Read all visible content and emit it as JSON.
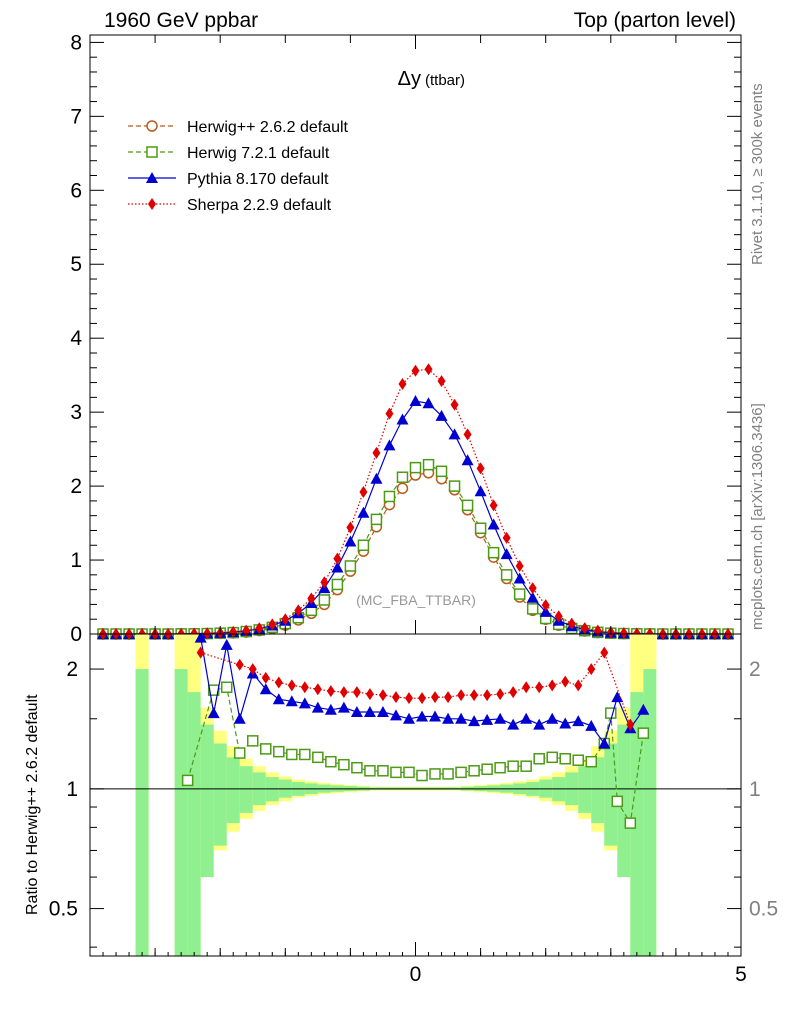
{
  "header": {
    "left": "1960 GeV ppbar",
    "right": "Top (parton level)"
  },
  "side_labels": {
    "rivet": "Rivet 3.1.10, ≥ 300k events",
    "mcplots": "mcplots.cern.ch [arXiv:1306.3436]"
  },
  "chart_data": [
    {
      "type": "line",
      "panel": "main",
      "title_main": "Δy",
      "title_sub": "(ttbar)",
      "watermark": "(MC_FBA_TTBAR)",
      "xlabel": "",
      "ylabel": "",
      "xlim": [
        -5,
        5
      ],
      "ylim": [
        0,
        8.1
      ],
      "yticks": [
        0,
        1,
        2,
        3,
        4,
        5,
        6,
        7,
        8
      ],
      "xticks": [
        0,
        5
      ],
      "legend_position": "top-left",
      "x": [
        -4.8,
        -4.6,
        -4.4,
        -4.2,
        -4.0,
        -3.8,
        -3.6,
        -3.4,
        -3.2,
        -3.0,
        -2.8,
        -2.6,
        -2.4,
        -2.2,
        -2.0,
        -1.8,
        -1.6,
        -1.4,
        -1.2,
        -1.0,
        -0.8,
        -0.6,
        -0.4,
        -0.2,
        0.0,
        0.2,
        0.4,
        0.6,
        0.8,
        1.0,
        1.2,
        1.4,
        1.6,
        1.8,
        2.0,
        2.2,
        2.4,
        2.6,
        2.8,
        3.0,
        3.2,
        3.4,
        3.6,
        3.8,
        4.0,
        4.2,
        4.4,
        4.6,
        4.8
      ],
      "series": [
        {
          "name": "Herwig++ 2.6.2 default",
          "color": "#b85c1a",
          "marker": "circle-open",
          "dash": "dashed",
          "values": [
            0,
            0,
            0,
            0,
            0,
            0,
            0.001,
            0.002,
            0.004,
            0.008,
            0.015,
            0.026,
            0.045,
            0.075,
            0.12,
            0.19,
            0.28,
            0.4,
            0.6,
            0.85,
            1.12,
            1.45,
            1.75,
            1.97,
            2.15,
            2.18,
            2.1,
            1.95,
            1.68,
            1.37,
            1.04,
            0.75,
            0.5,
            0.32,
            0.2,
            0.12,
            0.07,
            0.04,
            0.02,
            0.01,
            0.005,
            0.002,
            0.001,
            0,
            0,
            0,
            0,
            0,
            0
          ]
        },
        {
          "name": "Herwig 7.2.1 default",
          "color": "#4c9a16",
          "marker": "square-open",
          "dash": "dashed",
          "values": [
            0,
            0,
            0,
            0,
            0,
            0,
            0.002,
            0.003,
            0.006,
            0.011,
            0.019,
            0.033,
            0.055,
            0.09,
            0.14,
            0.22,
            0.32,
            0.46,
            0.67,
            0.92,
            1.2,
            1.55,
            1.86,
            2.12,
            2.25,
            2.29,
            2.2,
            2.0,
            1.74,
            1.43,
            1.1,
            0.8,
            0.54,
            0.34,
            0.21,
            0.13,
            0.075,
            0.045,
            0.022,
            0.011,
            0.006,
            0.003,
            0.001,
            0,
            0,
            0,
            0,
            0,
            0
          ]
        },
        {
          "name": "Pythia 8.170 default",
          "color": "#0000d0",
          "marker": "triangle",
          "dash": "solid",
          "values": [
            0,
            0,
            0,
            0,
            0,
            0,
            0.002,
            0.005,
            0.009,
            0.015,
            0.026,
            0.042,
            0.07,
            0.115,
            0.18,
            0.28,
            0.42,
            0.62,
            0.9,
            1.25,
            1.64,
            2.1,
            2.55,
            2.9,
            3.15,
            3.12,
            2.95,
            2.7,
            2.35,
            1.93,
            1.48,
            1.08,
            0.75,
            0.49,
            0.3,
            0.18,
            0.105,
            0.06,
            0.033,
            0.017,
            0.008,
            0.004,
            0.002,
            0,
            0,
            0,
            0,
            0,
            0
          ]
        },
        {
          "name": "Sherpa 2.2.9 default",
          "color": "#e00000",
          "marker": "diamond",
          "dash": "dotted",
          "values": [
            0,
            0,
            0,
            0,
            0,
            0,
            0.002,
            0.005,
            0.009,
            0.016,
            0.028,
            0.046,
            0.078,
            0.13,
            0.2,
            0.32,
            0.48,
            0.7,
            1.02,
            1.44,
            1.92,
            2.45,
            2.98,
            3.38,
            3.56,
            3.58,
            3.42,
            3.1,
            2.7,
            2.24,
            1.74,
            1.3,
            0.92,
            0.62,
            0.39,
            0.24,
            0.14,
            0.08,
            0.045,
            0.024,
            0.012,
            0.006,
            0.003,
            0,
            0,
            0,
            0,
            0,
            0
          ]
        }
      ]
    },
    {
      "type": "line",
      "panel": "ratio",
      "ylabel": "Ratio to Herwig++ 2.6.2 default",
      "yscale": "log",
      "ylim": [
        0.38,
        2.45
      ],
      "yticks": [
        0.5,
        1,
        2
      ],
      "reference_line": 1,
      "bands": [
        {
          "name": "yellow",
          "color": "#ffff80",
          "x": [
            -4.3,
            -4.1,
            -3.7,
            -3.5,
            -3.3,
            -3.1,
            -2.9,
            -2.7,
            -2.5,
            -2.3,
            -2.1,
            -1.9,
            -1.7,
            -1.5,
            -1.3,
            -1.1,
            -0.9,
            -0.7,
            0.7,
            0.9,
            1.1,
            1.3,
            1.5,
            1.7,
            1.9,
            2.1,
            2.3,
            2.5,
            2.7,
            2.9,
            3.1,
            3.3,
            3.5
          ],
          "x2": [
            -4.1,
            -3.7,
            -3.5,
            -3.3,
            -3.1,
            -2.9,
            -2.7,
            -2.5,
            -2.3,
            -2.1,
            -1.9,
            -1.7,
            -1.5,
            -1.3,
            -1.1,
            -0.9,
            -0.7,
            0.7,
            0.9,
            1.1,
            1.3,
            1.5,
            1.7,
            1.9,
            2.1,
            2.3,
            2.5,
            2.7,
            2.9,
            3.1,
            3.3,
            3.5,
            3.7
          ],
          "lo": [
            0.3,
            1.0,
            0.3,
            0.3,
            0.6,
            0.7,
            0.78,
            0.84,
            0.88,
            0.91,
            0.93,
            0.95,
            0.96,
            0.97,
            0.975,
            0.98,
            0.985,
            0.99,
            0.985,
            0.98,
            0.975,
            0.97,
            0.96,
            0.95,
            0.93,
            0.91,
            0.88,
            0.84,
            0.78,
            0.7,
            0.6,
            0.3,
            0.3
          ],
          "hi": [
            2.45,
            1.0,
            2.45,
            2.45,
            1.6,
            1.4,
            1.28,
            1.19,
            1.14,
            1.1,
            1.075,
            1.055,
            1.045,
            1.035,
            1.028,
            1.022,
            1.018,
            1.012,
            1.018,
            1.022,
            1.028,
            1.035,
            1.045,
            1.055,
            1.075,
            1.1,
            1.14,
            1.19,
            1.28,
            1.4,
            1.6,
            2.45,
            2.45
          ]
        },
        {
          "name": "green",
          "color": "#90f090",
          "x": [
            -4.3,
            -4.1,
            -3.7,
            -3.5,
            -3.3,
            -3.1,
            -2.9,
            -2.7,
            -2.5,
            -2.3,
            -2.1,
            -1.9,
            -1.7,
            -1.5,
            -1.3,
            -1.1,
            -0.9,
            -0.7,
            0.7,
            0.9,
            1.1,
            1.3,
            1.5,
            1.7,
            1.9,
            2.1,
            2.3,
            2.5,
            2.7,
            2.9,
            3.1,
            3.3,
            3.5
          ],
          "x2": [
            -4.1,
            -3.7,
            -3.5,
            -3.3,
            -3.1,
            -2.9,
            -2.7,
            -2.5,
            -2.3,
            -2.1,
            -1.9,
            -1.7,
            -1.5,
            -1.3,
            -1.1,
            -0.9,
            -0.7,
            0.7,
            0.9,
            1.1,
            1.3,
            1.5,
            1.7,
            1.9,
            2.1,
            2.3,
            2.5,
            2.7,
            2.9,
            3.1,
            3.3,
            3.5,
            3.7
          ],
          "lo": [
            0.3,
            1.0,
            0.3,
            0.35,
            0.6,
            0.72,
            0.82,
            0.87,
            0.91,
            0.93,
            0.95,
            0.96,
            0.97,
            0.978,
            0.983,
            0.987,
            0.99,
            0.994,
            0.99,
            0.987,
            0.983,
            0.978,
            0.97,
            0.96,
            0.95,
            0.93,
            0.91,
            0.87,
            0.82,
            0.72,
            0.6,
            0.35,
            0.3
          ],
          "hi": [
            2.0,
            1.0,
            2.0,
            1.75,
            1.45,
            1.3,
            1.2,
            1.14,
            1.1,
            1.07,
            1.055,
            1.04,
            1.032,
            1.025,
            1.02,
            1.016,
            1.012,
            1.008,
            1.012,
            1.016,
            1.02,
            1.025,
            1.032,
            1.04,
            1.055,
            1.07,
            1.1,
            1.14,
            1.2,
            1.3,
            1.45,
            1.75,
            2.0
          ]
        }
      ],
      "series": [
        {
          "name": "Herwig 7.2.1 / Herwig++",
          "color": "#4c9a16",
          "marker": "square-open",
          "dash": "dashed",
          "x": [
            -3.5,
            -3.1,
            -2.9,
            -2.7,
            -2.5,
            -2.3,
            -2.1,
            -1.9,
            -1.7,
            -1.5,
            -1.3,
            -1.1,
            -0.9,
            -0.7,
            -0.5,
            -0.3,
            -0.1,
            0.1,
            0.3,
            0.5,
            0.7,
            0.9,
            1.1,
            1.3,
            1.5,
            1.7,
            1.9,
            2.1,
            2.3,
            2.5,
            2.7,
            2.9,
            3.0,
            3.1,
            3.3,
            3.5
          ],
          "values": [
            1.05,
            1.77,
            1.8,
            1.23,
            1.32,
            1.26,
            1.24,
            1.22,
            1.22,
            1.2,
            1.17,
            1.15,
            1.13,
            1.11,
            1.11,
            1.1,
            1.1,
            1.08,
            1.09,
            1.09,
            1.1,
            1.11,
            1.12,
            1.13,
            1.14,
            1.14,
            1.19,
            1.2,
            1.19,
            1.18,
            1.17,
            1.3,
            1.55,
            0.93,
            0.82,
            1.38
          ]
        },
        {
          "name": "Pythia 8.170 / Herwig++",
          "color": "#0000d0",
          "marker": "triangle",
          "dash": "solid",
          "x": [
            -3.3,
            -3.1,
            -2.9,
            -2.7,
            -2.5,
            -2.3,
            -2.1,
            -1.9,
            -1.7,
            -1.5,
            -1.3,
            -1.1,
            -0.9,
            -0.7,
            -0.5,
            -0.3,
            -0.1,
            0.1,
            0.3,
            0.5,
            0.7,
            0.9,
            1.1,
            1.3,
            1.5,
            1.7,
            1.9,
            2.1,
            2.3,
            2.5,
            2.7,
            2.9,
            3.1,
            3.3,
            3.5
          ],
          "values": [
            2.4,
            1.55,
            2.3,
            1.5,
            1.95,
            1.78,
            1.68,
            1.66,
            1.64,
            1.6,
            1.58,
            1.6,
            1.56,
            1.56,
            1.56,
            1.53,
            1.5,
            1.52,
            1.52,
            1.5,
            1.5,
            1.48,
            1.49,
            1.5,
            1.45,
            1.5,
            1.45,
            1.5,
            1.46,
            1.48,
            1.44,
            1.3,
            1.7,
            1.42,
            1.58
          ]
        },
        {
          "name": "Sherpa 2.2.9 / Herwig++",
          "color": "#e00000",
          "marker": "diamond",
          "dash": "dotted",
          "x": [
            -3.3,
            -2.7,
            -2.5,
            -2.3,
            -2.1,
            -1.9,
            -1.7,
            -1.5,
            -1.3,
            -1.1,
            -0.9,
            -0.7,
            -0.5,
            -0.3,
            -0.1,
            0.1,
            0.3,
            0.5,
            0.7,
            0.9,
            1.1,
            1.3,
            1.5,
            1.7,
            1.9,
            2.1,
            2.3,
            2.5,
            2.7,
            2.9,
            3.3
          ],
          "values": [
            2.2,
            2.05,
            2.0,
            1.9,
            1.85,
            1.82,
            1.8,
            1.78,
            1.76,
            1.75,
            1.75,
            1.73,
            1.72,
            1.7,
            1.69,
            1.69,
            1.7,
            1.7,
            1.72,
            1.72,
            1.72,
            1.73,
            1.75,
            1.8,
            1.8,
            1.82,
            1.86,
            1.82,
            2.0,
            2.2,
            1.45
          ]
        }
      ]
    }
  ]
}
